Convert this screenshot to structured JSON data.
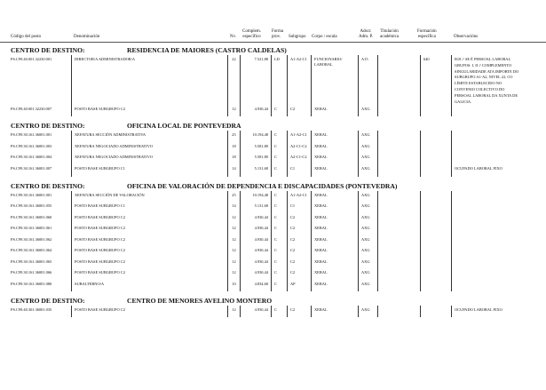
{
  "headers": {
    "code": "Código del posto",
    "denominacion": "Denominación",
    "nivel": "Nv.",
    "complemento": "Complem.\nespecífico",
    "forma": "Forma\nprov.",
    "subgrupo": "Subgrupo",
    "cuerpo": "Corpo / escala",
    "adscr": "Adscr.\nAdm. P.",
    "titulacion": "Titulación\nacadémica",
    "formacion": "Formación\nespecífica",
    "observaciones": "Observacións"
  },
  "section_label": "CENTRO DE DESTINO:",
  "sections": [
    {
      "name": "RESIDENCIA DE MAIORES (CASTRO CALDELAS)",
      "rows": [
        {
          "code": "PS.C99.40.001.32230.001",
          "denominacion": "DIRECTOR/A ADMINISTRADOR/A",
          "nivel": "22",
          "complemento": "7.521,88",
          "forma": "LD",
          "subgrupo": "A1-A2-C1",
          "cuerpo": "FUNCIONARIO/\nLABORAL",
          "adscr": "A15",
          "titulacion": "",
          "formacion": "640",
          "observaciones": "B18 // SE É PERSOAL LABORAL\nGRUPOS: I, II // COMPLEMENTO\nSINGULARIDADE ATA IMPORTE DO\nSUBGRUPO A1-A2, NIVEL 22, CO\nLÍMITE ESTABLECIDO NO\nCONVENIO COLECTIVO DO\nPERSOAL LABORAL DA XUNTA DE\nGALICIA."
        },
        {
          "code": "PS.C99.40.001.32230.007",
          "denominacion": "POSTO BASE SUBGRUPO C2",
          "nivel": "12",
          "complemento": "4.930,44",
          "forma": "C",
          "subgrupo": "C2",
          "cuerpo": "XERAL",
          "adscr": "AXG",
          "titulacion": "",
          "formacion": "",
          "observaciones": ""
        }
      ]
    },
    {
      "name": "OFICINA LOCAL DE PONTEVEDRA",
      "rows": [
        {
          "code": "PS.C99.30.161.36001.001",
          "denominacion": "XEFATURA SECCIÓN ADMINISTRATIVA",
          "nivel": "25",
          "complemento": "10.194,48",
          "forma": "C",
          "subgrupo": "A1-A2-C1",
          "cuerpo": "XERAL",
          "adscr": "AXG",
          "titulacion": "",
          "formacion": "",
          "observaciones": ""
        },
        {
          "code": "PS.C99.30.161.36001.003",
          "denominacion": "XEFATURA NEGOCIADO ADMINISTRATIVO",
          "nivel": "18",
          "complemento": "5.581,80",
          "forma": "C",
          "subgrupo": "A2-C1-C2",
          "cuerpo": "XERAL",
          "adscr": "AXG",
          "titulacion": "",
          "formacion": "",
          "observaciones": ""
        },
        {
          "code": "PS.C99.30.161.36001.004",
          "denominacion": "XEFATURA NEGOCIADO ADMINISTRATIVO",
          "nivel": "18",
          "complemento": "5.581,80",
          "forma": "C",
          "subgrupo": "A2-C1-C2",
          "cuerpo": "XERAL",
          "adscr": "AXG",
          "titulacion": "",
          "formacion": "",
          "observaciones": ""
        },
        {
          "code": "PS.C99.30.161.36001.007",
          "denominacion": "POSTO BASE SUBGRUPO C1",
          "nivel": "14",
          "complemento": "5.131,68",
          "forma": "C",
          "subgrupo": "C1",
          "cuerpo": "XERAL",
          "adscr": "AXG",
          "titulacion": "",
          "formacion": "",
          "observaciones": "OCUPADO LABORAL FIXO"
        }
      ]
    },
    {
      "name": "OFICINA DE VALORACIÓN DE DEPENDENCIA E DISCAPACIDADES (PONTEVEDRA)",
      "rows": [
        {
          "code": "PS.C99.30.161.36001.001",
          "denominacion": "XEFATURA SECCIÓN DE VALORACIÓN",
          "nivel": "25",
          "complemento": "10.194,48",
          "forma": "C",
          "subgrupo": "A1-A2-C1",
          "cuerpo": "XERAL",
          "adscr": "AXG",
          "titulacion": "",
          "formacion": "",
          "observaciones": ""
        },
        {
          "code": "PS.C99.30.161.36001.055",
          "denominacion": "POSTO BASE SUBGRUPO C1",
          "nivel": "14",
          "complemento": "5.131,68",
          "forma": "C",
          "subgrupo": "C1",
          "cuerpo": "XERAL",
          "adscr": "AXG",
          "titulacion": "",
          "formacion": "",
          "observaciones": ""
        },
        {
          "code": "PS.C99.30.161.36001.060",
          "denominacion": "POSTO BASE SUBGRUPO C2",
          "nivel": "12",
          "complemento": "4.930,44",
          "forma": "C",
          "subgrupo": "C2",
          "cuerpo": "XERAL",
          "adscr": "AXG",
          "titulacion": "",
          "formacion": "",
          "observaciones": ""
        },
        {
          "code": "PS.C99.30.161.36001.061",
          "denominacion": "POSTO BASE SUBGRUPO C2",
          "nivel": "12",
          "complemento": "4.930,44",
          "forma": "C",
          "subgrupo": "C2",
          "cuerpo": "XERAL",
          "adscr": "AXG",
          "titulacion": "",
          "formacion": "",
          "observaciones": ""
        },
        {
          "code": "PS.C99.30.161.36001.062",
          "denominacion": "POSTO BASE SUBGRUPO C2",
          "nivel": "12",
          "complemento": "4.930,44",
          "forma": "C",
          "subgrupo": "C2",
          "cuerpo": "XERAL",
          "adscr": "AXG",
          "titulacion": "",
          "formacion": "",
          "observaciones": ""
        },
        {
          "code": "PS.C99.30.161.36001.064",
          "denominacion": "POSTO BASE SUBGRUPO C2",
          "nivel": "12",
          "complemento": "4.930,44",
          "forma": "C",
          "subgrupo": "C2",
          "cuerpo": "XERAL",
          "adscr": "AXG",
          "titulacion": "",
          "formacion": "",
          "observaciones": ""
        },
        {
          "code": "PS.C99.30.161.36001.065",
          "denominacion": "POSTO BASE SUBGRUPO C2",
          "nivel": "12",
          "complemento": "4.930,44",
          "forma": "C",
          "subgrupo": "C2",
          "cuerpo": "XERAL",
          "adscr": "AXG",
          "titulacion": "",
          "formacion": "",
          "observaciones": ""
        },
        {
          "code": "PS.C99.30.161.36001.066",
          "denominacion": "POSTO BASE SUBGRUPO C2",
          "nivel": "12",
          "complemento": "4.930,44",
          "forma": "C",
          "subgrupo": "C2",
          "cuerpo": "XERAL",
          "adscr": "AXG",
          "titulacion": "",
          "formacion": "",
          "observaciones": ""
        },
        {
          "code": "PS.C99.30.161.36001.080",
          "denominacion": "SUBALTERNO/A",
          "nivel": "10",
          "complemento": "4.834,68",
          "forma": "C",
          "subgrupo": "AP",
          "cuerpo": "XERAL",
          "adscr": "AXG",
          "titulacion": "",
          "formacion": "",
          "observaciones": ""
        }
      ]
    },
    {
      "name": "CENTRO DE MENORES AVELINO MONTERO",
      "rows": [
        {
          "code": "PS.C99.40.301.36001.035",
          "denominacion": "POSTO BASE SUBGRUPO C2",
          "nivel": "12",
          "complemento": "4.930,44",
          "forma": "C",
          "subgrupo": "C2",
          "cuerpo": "XERAL",
          "adscr": "AXG",
          "titulacion": "",
          "formacion": "",
          "observaciones": "OCUPADO LABORAL FIXO"
        }
      ]
    }
  ]
}
